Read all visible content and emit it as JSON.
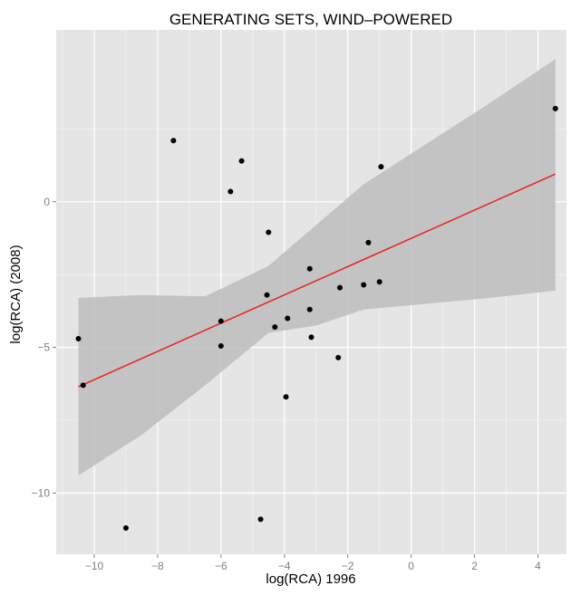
{
  "chart_data": {
    "type": "scatter",
    "title": "GENERATING SETS, WIND–POWERED",
    "xlabel": "log(RCA) 1996",
    "ylabel": "log(RCA) (2008)",
    "xlim": [
      -11.2,
      4.9
    ],
    "ylim": [
      -12.1,
      5.9
    ],
    "x_ticks": [
      -10,
      -8,
      -6,
      -4,
      -2,
      0,
      2,
      4
    ],
    "x_tick_labels": [
      "−10",
      "−8",
      "−6",
      "−4",
      "−2",
      "0",
      "2",
      "4"
    ],
    "y_ticks": [
      0,
      -5,
      -10
    ],
    "y_tick_labels": [
      "0",
      "−5",
      "−10"
    ],
    "grid": true,
    "points": [
      {
        "x": -10.5,
        "y": -4.7
      },
      {
        "x": -10.35,
        "y": -6.3
      },
      {
        "x": -9.0,
        "y": -11.2
      },
      {
        "x": -7.5,
        "y": 2.1
      },
      {
        "x": -6.0,
        "y": -4.1
      },
      {
        "x": -6.0,
        "y": -4.95
      },
      {
        "x": -5.7,
        "y": 0.35
      },
      {
        "x": -5.35,
        "y": 1.4
      },
      {
        "x": -4.75,
        "y": -10.9
      },
      {
        "x": -4.55,
        "y": -3.2
      },
      {
        "x": -4.5,
        "y": -1.05
      },
      {
        "x": -4.3,
        "y": -4.3
      },
      {
        "x": -3.95,
        "y": -6.7
      },
      {
        "x": -3.9,
        "y": -4.0
      },
      {
        "x": -3.2,
        "y": -2.3
      },
      {
        "x": -3.2,
        "y": -3.7
      },
      {
        "x": -3.15,
        "y": -4.65
      },
      {
        "x": -2.3,
        "y": -5.35
      },
      {
        "x": -2.25,
        "y": -2.95
      },
      {
        "x": -1.5,
        "y": -2.85
      },
      {
        "x": -1.35,
        "y": -1.4
      },
      {
        "x": -1.0,
        "y": -2.75
      },
      {
        "x": -0.95,
        "y": 1.2
      },
      {
        "x": 4.55,
        "y": 3.2
      }
    ],
    "fit_line": {
      "x": [
        -10.5,
        4.55
      ],
      "y": [
        -6.35,
        0.95
      ]
    },
    "confidence_band": {
      "x": [
        -10.5,
        -8.5,
        -6.5,
        -4.5,
        -3.0,
        -1.5,
        0.5,
        2.5,
        4.55
      ],
      "upper": [
        -3.3,
        -3.2,
        -3.25,
        -2.2,
        -0.8,
        0.6,
        2.0,
        3.4,
        4.9
      ],
      "lower": [
        -9.4,
        -8.0,
        -6.3,
        -4.5,
        -4.25,
        -3.7,
        -3.5,
        -3.3,
        -3.05
      ]
    },
    "colors": {
      "panel": "#e5e5e5",
      "grid_major": "#ffffff",
      "grid_minor": "#f2f2f2",
      "band": "#bdbdbd",
      "fit_line": "#e8231e",
      "point": "#000000",
      "axis_text": "#7f7f7f",
      "title_text": "#000000"
    }
  }
}
